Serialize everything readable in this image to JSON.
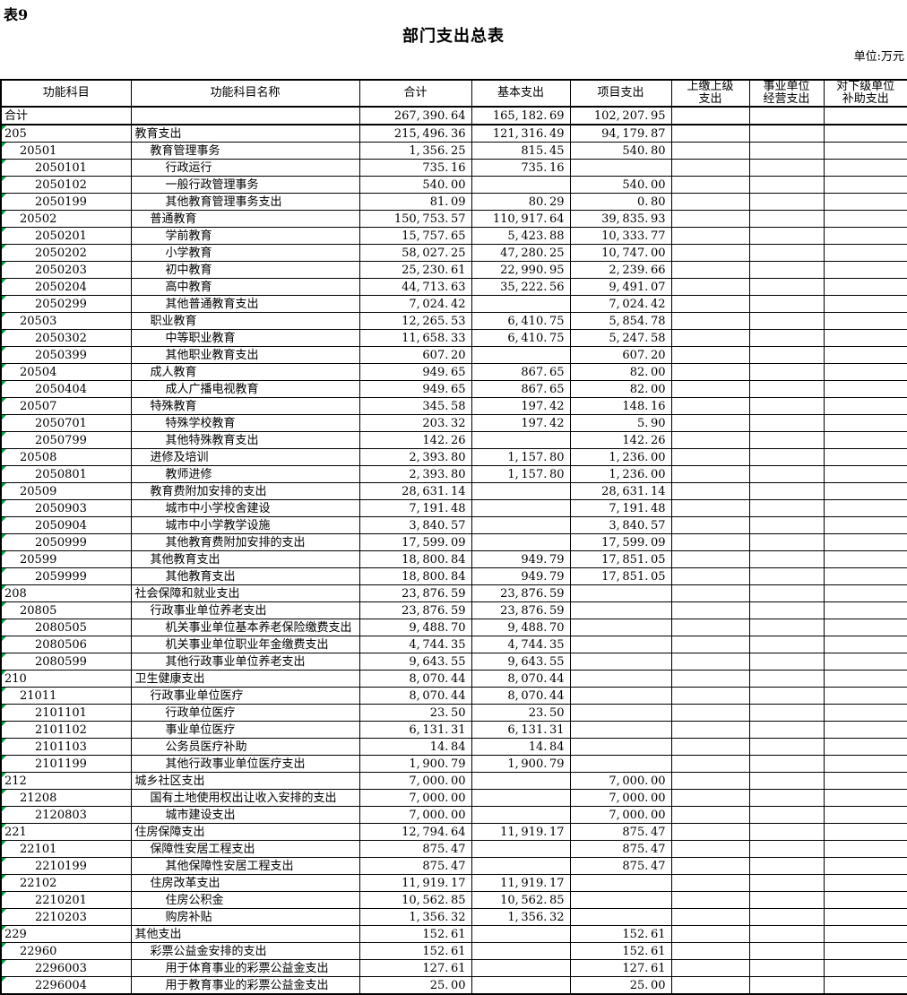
{
  "page": {
    "tag": "表9",
    "title": "部门支出总表",
    "unit": "单位:万元",
    "marker_color": "#00a33c"
  },
  "table": {
    "headers": [
      "功能科目",
      "功能科目名称",
      "合计",
      "基本支出",
      "项目支出",
      "上缴上级\n支出",
      "事业单位\n经营支出",
      "对下级单位\n补助支出"
    ],
    "rows": [
      {
        "code": "合计",
        "name": "",
        "total": "267,390.64",
        "basic": "165,182.69",
        "project": "102,207.95",
        "level": 0,
        "marker": false
      },
      {
        "code": "205",
        "name": "教育支出",
        "total": "215,496.36",
        "basic": "121,316.49",
        "project": "94,179.87",
        "level": 0,
        "marker": true
      },
      {
        "code": "20501",
        "name": "教育管理事务",
        "total": "1,356.25",
        "basic": "815.45",
        "project": "540.80",
        "level": 1,
        "marker": true
      },
      {
        "code": "2050101",
        "name": "行政运行",
        "total": "735.16",
        "basic": "735.16",
        "project": "",
        "level": 2,
        "marker": true
      },
      {
        "code": "2050102",
        "name": "一般行政管理事务",
        "total": "540.00",
        "basic": "",
        "project": "540.00",
        "level": 2,
        "marker": true
      },
      {
        "code": "2050199",
        "name": "其他教育管理事务支出",
        "total": "81.09",
        "basic": "80.29",
        "project": "0.80",
        "level": 2,
        "marker": true
      },
      {
        "code": "20502",
        "name": "普通教育",
        "total": "150,753.57",
        "basic": "110,917.64",
        "project": "39,835.93",
        "level": 1,
        "marker": true
      },
      {
        "code": "2050201",
        "name": "学前教育",
        "total": "15,757.65",
        "basic": "5,423.88",
        "project": "10,333.77",
        "level": 2,
        "marker": true
      },
      {
        "code": "2050202",
        "name": "小学教育",
        "total": "58,027.25",
        "basic": "47,280.25",
        "project": "10,747.00",
        "level": 2,
        "marker": true
      },
      {
        "code": "2050203",
        "name": "初中教育",
        "total": "25,230.61",
        "basic": "22,990.95",
        "project": "2,239.66",
        "level": 2,
        "marker": true
      },
      {
        "code": "2050204",
        "name": "高中教育",
        "total": "44,713.63",
        "basic": "35,222.56",
        "project": "9,491.07",
        "level": 2,
        "marker": true
      },
      {
        "code": "2050299",
        "name": "其他普通教育支出",
        "total": "7,024.42",
        "basic": "",
        "project": "7,024.42",
        "level": 2,
        "marker": true
      },
      {
        "code": "20503",
        "name": "职业教育",
        "total": "12,265.53",
        "basic": "6,410.75",
        "project": "5,854.78",
        "level": 1,
        "marker": true
      },
      {
        "code": "2050302",
        "name": "中等职业教育",
        "total": "11,658.33",
        "basic": "6,410.75",
        "project": "5,247.58",
        "level": 2,
        "marker": true
      },
      {
        "code": "2050399",
        "name": "其他职业教育支出",
        "total": "607.20",
        "basic": "",
        "project": "607.20",
        "level": 2,
        "marker": true
      },
      {
        "code": "20504",
        "name": "成人教育",
        "total": "949.65",
        "basic": "867.65",
        "project": "82.00",
        "level": 1,
        "marker": true
      },
      {
        "code": "2050404",
        "name": "成人广播电视教育",
        "total": "949.65",
        "basic": "867.65",
        "project": "82.00",
        "level": 2,
        "marker": true
      },
      {
        "code": "20507",
        "name": "特殊教育",
        "total": "345.58",
        "basic": "197.42",
        "project": "148.16",
        "level": 1,
        "marker": true
      },
      {
        "code": "2050701",
        "name": "特殊学校教育",
        "total": "203.32",
        "basic": "197.42",
        "project": "5.90",
        "level": 2,
        "marker": true
      },
      {
        "code": "2050799",
        "name": "其他特殊教育支出",
        "total": "142.26",
        "basic": "",
        "project": "142.26",
        "level": 2,
        "marker": true
      },
      {
        "code": "20508",
        "name": "进修及培训",
        "total": "2,393.80",
        "basic": "1,157.80",
        "project": "1,236.00",
        "level": 1,
        "marker": true
      },
      {
        "code": "2050801",
        "name": "教师进修",
        "total": "2,393.80",
        "basic": "1,157.80",
        "project": "1,236.00",
        "level": 2,
        "marker": true
      },
      {
        "code": "20509",
        "name": "教育费附加安排的支出",
        "total": "28,631.14",
        "basic": "",
        "project": "28,631.14",
        "level": 1,
        "marker": true
      },
      {
        "code": "2050903",
        "name": "城市中小学校舍建设",
        "total": "7,191.48",
        "basic": "",
        "project": "7,191.48",
        "level": 2,
        "marker": true
      },
      {
        "code": "2050904",
        "name": "城市中小学教学设施",
        "total": "3,840.57",
        "basic": "",
        "project": "3,840.57",
        "level": 2,
        "marker": true
      },
      {
        "code": "2050999",
        "name": "其他教育费附加安排的支出",
        "total": "17,599.09",
        "basic": "",
        "project": "17,599.09",
        "level": 2,
        "marker": true
      },
      {
        "code": "20599",
        "name": "其他教育支出",
        "total": "18,800.84",
        "basic": "949.79",
        "project": "17,851.05",
        "level": 1,
        "marker": true
      },
      {
        "code": "2059999",
        "name": "其他教育支出",
        "total": "18,800.84",
        "basic": "949.79",
        "project": "17,851.05",
        "level": 2,
        "marker": true
      },
      {
        "code": "208",
        "name": "社会保障和就业支出",
        "total": "23,876.59",
        "basic": "23,876.59",
        "project": "",
        "level": 0,
        "marker": true
      },
      {
        "code": "20805",
        "name": "行政事业单位养老支出",
        "total": "23,876.59",
        "basic": "23,876.59",
        "project": "",
        "level": 1,
        "marker": true
      },
      {
        "code": "2080505",
        "name": "机关事业单位基本养老保险缴费支出",
        "total": "9,488.70",
        "basic": "9,488.70",
        "project": "",
        "level": 2,
        "marker": true
      },
      {
        "code": "2080506",
        "name": "机关事业单位职业年金缴费支出",
        "total": "4,744.35",
        "basic": "4,744.35",
        "project": "",
        "level": 2,
        "marker": true
      },
      {
        "code": "2080599",
        "name": "其他行政事业单位养老支出",
        "total": "9,643.55",
        "basic": "9,643.55",
        "project": "",
        "level": 2,
        "marker": true
      },
      {
        "code": "210",
        "name": "卫生健康支出",
        "total": "8,070.44",
        "basic": "8,070.44",
        "project": "",
        "level": 0,
        "marker": true
      },
      {
        "code": "21011",
        "name": "行政事业单位医疗",
        "total": "8,070.44",
        "basic": "8,070.44",
        "project": "",
        "level": 1,
        "marker": true
      },
      {
        "code": "2101101",
        "name": "行政单位医疗",
        "total": "23.50",
        "basic": "23.50",
        "project": "",
        "level": 2,
        "marker": true
      },
      {
        "code": "2101102",
        "name": "事业单位医疗",
        "total": "6,131.31",
        "basic": "6,131.31",
        "project": "",
        "level": 2,
        "marker": true
      },
      {
        "code": "2101103",
        "name": "公务员医疗补助",
        "total": "14.84",
        "basic": "14.84",
        "project": "",
        "level": 2,
        "marker": true
      },
      {
        "code": "2101199",
        "name": "其他行政事业单位医疗支出",
        "total": "1,900.79",
        "basic": "1,900.79",
        "project": "",
        "level": 2,
        "marker": true
      },
      {
        "code": "212",
        "name": "城乡社区支出",
        "total": "7,000.00",
        "basic": "",
        "project": "7,000.00",
        "level": 0,
        "marker": true
      },
      {
        "code": "21208",
        "name": "国有土地使用权出让收入安排的支出",
        "total": "7,000.00",
        "basic": "",
        "project": "7,000.00",
        "level": 1,
        "marker": true
      },
      {
        "code": "2120803",
        "name": "城市建设支出",
        "total": "7,000.00",
        "basic": "",
        "project": "7,000.00",
        "level": 2,
        "marker": true
      },
      {
        "code": "221",
        "name": "住房保障支出",
        "total": "12,794.64",
        "basic": "11,919.17",
        "project": "875.47",
        "level": 0,
        "marker": true
      },
      {
        "code": "22101",
        "name": "保障性安居工程支出",
        "total": "875.47",
        "basic": "",
        "project": "875.47",
        "level": 1,
        "marker": true
      },
      {
        "code": "2210199",
        "name": "其他保障性安居工程支出",
        "total": "875.47",
        "basic": "",
        "project": "875.47",
        "level": 2,
        "marker": true
      },
      {
        "code": "22102",
        "name": "住房改革支出",
        "total": "11,919.17",
        "basic": "11,919.17",
        "project": "",
        "level": 1,
        "marker": true
      },
      {
        "code": "2210201",
        "name": "住房公积金",
        "total": "10,562.85",
        "basic": "10,562.85",
        "project": "",
        "level": 2,
        "marker": true
      },
      {
        "code": "2210203",
        "name": "购房补贴",
        "total": "1,356.32",
        "basic": "1,356.32",
        "project": "",
        "level": 2,
        "marker": true
      },
      {
        "code": "229",
        "name": "其他支出",
        "total": "152.61",
        "basic": "",
        "project": "152.61",
        "level": 0,
        "marker": true
      },
      {
        "code": "22960",
        "name": "彩票公益金安排的支出",
        "total": "152.61",
        "basic": "",
        "project": "152.61",
        "level": 1,
        "marker": true
      },
      {
        "code": "2296003",
        "name": "用于体育事业的彩票公益金支出",
        "total": "127.61",
        "basic": "",
        "project": "127.61",
        "level": 2,
        "marker": true
      },
      {
        "code": "2296004",
        "name": "用于教育事业的彩票公益金支出",
        "total": "25.00",
        "basic": "",
        "project": "25.00",
        "level": 2,
        "marker": true
      }
    ]
  }
}
